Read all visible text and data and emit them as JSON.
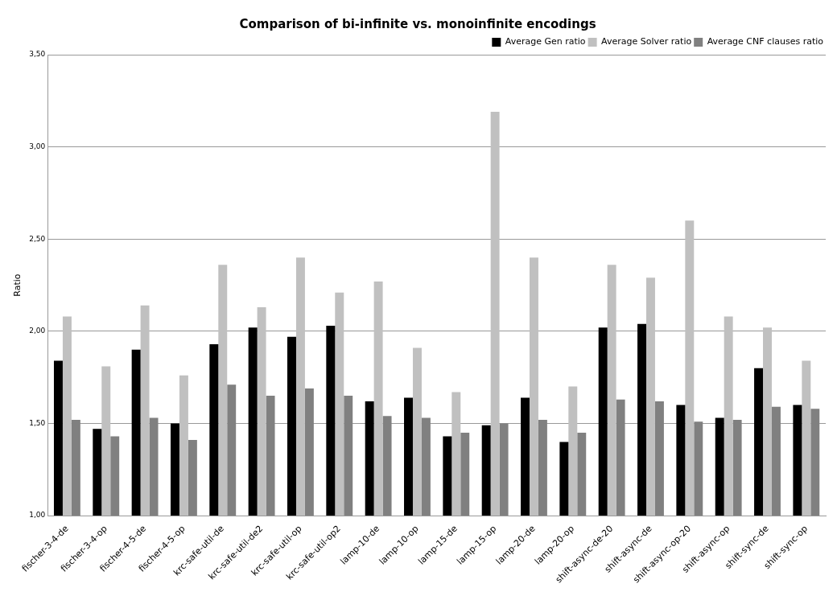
{
  "chart_data": {
    "type": "bar",
    "title": "Comparison of bi-infinite vs. monoinfinite encodings",
    "ylabel": "Ratio",
    "categories": [
      "fischer-3-4-de",
      "fischer-3-4-op",
      "fischer-4-5-de",
      "fischer-4-5-op",
      "krc-safe-util-de",
      "krc-safe-util-de2",
      "krc-safe-util-op",
      "krc-safe-util-op2",
      "lamp-10-de",
      "lamp-10-op",
      "lamp-15-de",
      "lamp-15-op",
      "lamp-20-de",
      "lamp-20-op",
      "shift-async-de-20",
      "shift-async-de",
      "shift-async-op-20",
      "shift-async-op",
      "shift-sync-de",
      "shift-sync-op"
    ],
    "series": [
      {
        "name": "Average Gen ratio",
        "color": "#000000",
        "values": [
          1.84,
          1.47,
          1.9,
          1.5,
          1.93,
          2.02,
          1.97,
          2.03,
          1.62,
          1.64,
          1.43,
          1.49,
          1.64,
          1.4,
          2.02,
          2.04,
          1.6,
          1.53,
          1.8,
          1.6
        ]
      },
      {
        "name": "Average Solver ratio",
        "color": "#c0c0c0",
        "values": [
          2.08,
          1.81,
          2.14,
          1.76,
          2.36,
          2.13,
          2.4,
          2.21,
          2.27,
          1.91,
          1.67,
          3.19,
          2.4,
          1.7,
          2.36,
          2.29,
          2.6,
          2.08,
          2.02,
          1.84
        ]
      },
      {
        "name": "Average CNF clauses ratio",
        "color": "#808080",
        "values": [
          1.52,
          1.43,
          1.53,
          1.41,
          1.71,
          1.65,
          1.69,
          1.65,
          1.54,
          1.53,
          1.45,
          1.5,
          1.52,
          1.45,
          1.63,
          1.62,
          1.51,
          1.52,
          1.59,
          1.58
        ]
      }
    ],
    "ylim": [
      1,
      3.5
    ],
    "yticks": [
      {
        "value": 1,
        "label": "1,00"
      },
      {
        "value": 1.5,
        "label": "1,50"
      },
      {
        "value": 2,
        "label": "2,00"
      },
      {
        "value": 2.5,
        "label": "2,50"
      },
      {
        "value": 3,
        "label": "3,00"
      },
      {
        "value": 3.5,
        "label": "3,50"
      }
    ],
    "grid": "y",
    "legend": "top right"
  }
}
